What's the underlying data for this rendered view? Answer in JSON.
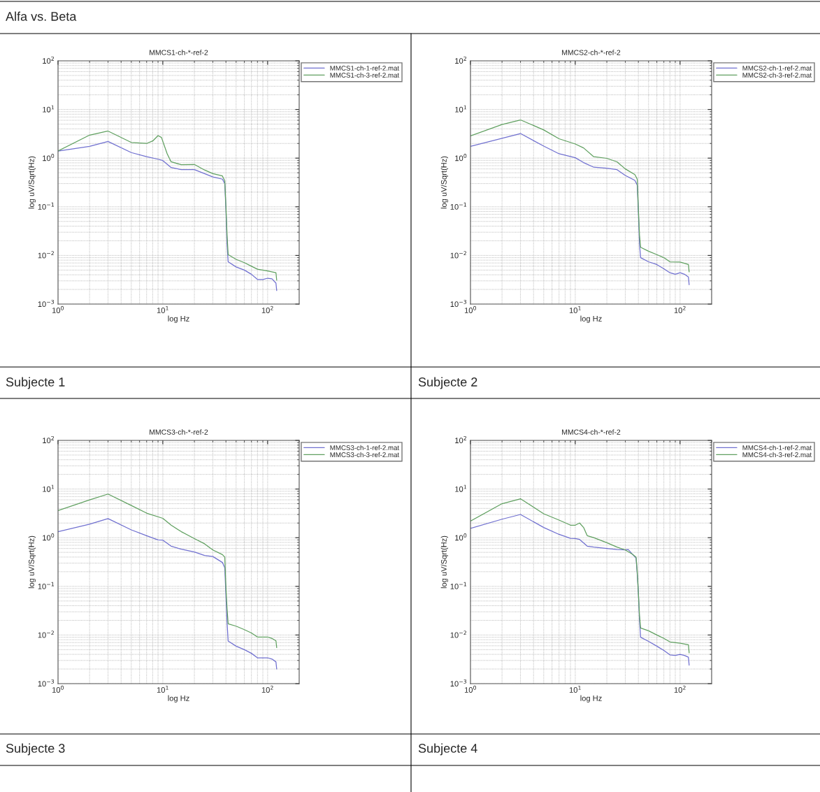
{
  "chart_data": [
    {
      "type": "line",
      "title": "MMCS1-ch-*-ref-2",
      "xlabel": "log Hz",
      "ylabel": "log uV/Sqrt(Hz)",
      "log": "xy",
      "grid": true,
      "legend": "top right",
      "line_style": "solid",
      "annotations": [
        "Alfa vs. Beta",
        "Subjecte 1"
      ],
      "xlim": [
        1,
        200
      ],
      "ylim": [
        0.001,
        100
      ],
      "xticks": [
        {
          "value": 1,
          "label": "10$^{0}$"
        },
        {
          "value": 10,
          "label": "10$^{1}$"
        },
        {
          "value": 100,
          "label": "10$^{2}$"
        }
      ],
      "yticks": [
        {
          "value": 0.001,
          "label": "10$^{−3}$"
        },
        {
          "value": 0.01,
          "label": "10$^{−2}$"
        },
        {
          "value": 0.1,
          "label": "10$^{−1}$"
        },
        {
          "value": 1,
          "label": "10$^{0}$"
        },
        {
          "value": 10,
          "label": "10$^{1}$"
        },
        {
          "value": 100,
          "label": "10$^{2}$"
        }
      ],
      "series": [
        {
          "name": "MMCS1-ch-1-ref-2.mat",
          "color": "#7070d0",
          "x": [
            1,
            2,
            3,
            5,
            7,
            9,
            10,
            12,
            15,
            20,
            25,
            30,
            37,
            39,
            40,
            41,
            42,
            50,
            60,
            70,
            80,
            90,
            100,
            110,
            120,
            122
          ],
          "values": [
            1.4,
            1.75,
            2.2,
            1.3,
            1.07,
            0.95,
            0.89,
            0.64,
            0.58,
            0.58,
            0.48,
            0.41,
            0.37,
            0.3,
            0.089,
            0.017,
            0.0074,
            0.0058,
            0.005,
            0.0041,
            0.0032,
            0.0032,
            0.0034,
            0.0033,
            0.0027,
            0.0019
          ]
        },
        {
          "name": "MMCS1-ch-3-ref-2.mat",
          "color": "#60a060",
          "x": [
            1,
            2,
            3,
            5,
            7,
            8,
            9,
            9.7,
            11,
            12,
            15,
            20,
            25,
            30,
            37,
            39,
            40,
            41,
            42,
            50,
            60,
            70,
            80,
            100,
            120,
            122
          ],
          "values": [
            1.4,
            2.97,
            3.6,
            2.1,
            2.0,
            2.25,
            2.9,
            2.66,
            1.23,
            0.84,
            0.73,
            0.74,
            0.57,
            0.48,
            0.43,
            0.34,
            0.1,
            0.026,
            0.0104,
            0.0083,
            0.0071,
            0.006,
            0.0052,
            0.0048,
            0.0044,
            0.0031
          ]
        }
      ]
    },
    {
      "type": "line",
      "title": "MMCS2-ch-*-ref-2",
      "xlabel": "log Hz",
      "ylabel": "log uV/Sqrt(Hz)",
      "log": "xy",
      "grid": true,
      "legend": "top right",
      "line_style": "solid",
      "annotations": [
        "Subjecte 2"
      ],
      "xlim": [
        1,
        200
      ],
      "ylim": [
        0.001,
        100
      ],
      "xticks": [
        {
          "value": 1,
          "label": "10$^{0}$"
        },
        {
          "value": 10,
          "label": "10$^{1}$"
        },
        {
          "value": 100,
          "label": "10$^{2}$"
        }
      ],
      "yticks": [
        {
          "value": 0.001,
          "label": "10$^{−3}$"
        },
        {
          "value": 0.01,
          "label": "10$^{−2}$"
        },
        {
          "value": 0.1,
          "label": "10$^{−1}$"
        },
        {
          "value": 1,
          "label": "10$^{0}$"
        },
        {
          "value": 10,
          "label": "10$^{1}$"
        },
        {
          "value": 100,
          "label": "10$^{2}$"
        }
      ],
      "series": [
        {
          "name": "MMCS2-ch-1-ref-2.mat",
          "color": "#7070d0",
          "x": [
            1,
            3,
            5,
            7,
            10,
            12,
            15,
            20,
            25,
            30,
            37,
            39,
            40,
            41,
            42,
            50,
            60,
            70,
            80,
            90,
            100,
            110,
            120,
            122
          ],
          "values": [
            1.75,
            3.2,
            1.77,
            1.23,
            1.02,
            0.81,
            0.65,
            0.62,
            0.58,
            0.44,
            0.35,
            0.28,
            0.079,
            0.017,
            0.009,
            0.0074,
            0.0065,
            0.0053,
            0.0044,
            0.0041,
            0.0044,
            0.0041,
            0.0036,
            0.0025
          ]
        },
        {
          "name": "MMCS2-ch-3-ref-2.mat",
          "color": "#60a060",
          "x": [
            1,
            2,
            3,
            5,
            7,
            10,
            12,
            15,
            20,
            25,
            30,
            37,
            39,
            40,
            41,
            42,
            50,
            60,
            70,
            80,
            100,
            120,
            122
          ],
          "values": [
            2.87,
            4.9,
            6.1,
            3.8,
            2.5,
            1.95,
            1.62,
            1.07,
            0.99,
            0.84,
            0.6,
            0.46,
            0.37,
            0.089,
            0.026,
            0.0147,
            0.0122,
            0.0104,
            0.009,
            0.0074,
            0.0073,
            0.0065,
            0.0046
          ]
        }
      ]
    },
    {
      "type": "line",
      "title": "MMCS3-ch-*-ref-2",
      "xlabel": "log Hz",
      "ylabel": "log uV/Sqrt(Hz)",
      "log": "xy",
      "grid": true,
      "legend": "top right",
      "line_style": "solid",
      "annotations": [
        "Subjecte 3"
      ],
      "xlim": [
        1,
        200
      ],
      "ylim": [
        0.001,
        100
      ],
      "xticks": [
        {
          "value": 1,
          "label": "10$^{0}$"
        },
        {
          "value": 10,
          "label": "10$^{1}$"
        },
        {
          "value": 100,
          "label": "10$^{2}$"
        }
      ],
      "yticks": [
        {
          "value": 0.001,
          "label": "10$^{−3}$"
        },
        {
          "value": 0.01,
          "label": "10$^{−2}$"
        },
        {
          "value": 0.1,
          "label": "10$^{−1}$"
        },
        {
          "value": 1,
          "label": "10$^{0}$"
        },
        {
          "value": 10,
          "label": "10$^{1}$"
        },
        {
          "value": 100,
          "label": "10$^{2}$"
        }
      ],
      "series": [
        {
          "name": "MMCS3-ch-1-ref-2.mat",
          "color": "#7070d0",
          "x": [
            1,
            2,
            3,
            5,
            7,
            9,
            10,
            12,
            15,
            20,
            25,
            30,
            37,
            39,
            40,
            41,
            42,
            50,
            60,
            70,
            80,
            90,
            100,
            110,
            120,
            122
          ],
          "values": [
            1.33,
            1.9,
            2.47,
            1.45,
            1.1,
            0.9,
            0.89,
            0.67,
            0.58,
            0.51,
            0.43,
            0.41,
            0.31,
            0.24,
            0.066,
            0.018,
            0.0075,
            0.0059,
            0.005,
            0.0042,
            0.0034,
            0.0034,
            0.0034,
            0.0032,
            0.0028,
            0.002
          ]
        },
        {
          "name": "MMCS3-ch-3-ref-2.mat",
          "color": "#60a060",
          "x": [
            1,
            2,
            3,
            5,
            7,
            10,
            12,
            15,
            20,
            25,
            30,
            37,
            39,
            40,
            41,
            42,
            50,
            60,
            70,
            80,
            100,
            110,
            120,
            122
          ],
          "values": [
            3.6,
            6.0,
            7.9,
            4.6,
            3.2,
            2.5,
            1.81,
            1.33,
            0.96,
            0.75,
            0.56,
            0.45,
            0.4,
            0.093,
            0.035,
            0.017,
            0.0152,
            0.0129,
            0.011,
            0.0091,
            0.0091,
            0.0085,
            0.0076,
            0.0055
          ]
        }
      ]
    },
    {
      "type": "line",
      "title": "MMCS4-ch-*-ref-2",
      "xlabel": "log Hz",
      "ylabel": "log uV/Sqrt(Hz)",
      "log": "xy",
      "grid": true,
      "legend": "top right",
      "line_style": "solid",
      "annotations": [
        "Subjecte 4"
      ],
      "xlim": [
        1,
        200
      ],
      "ylim": [
        0.001,
        100
      ],
      "xticks": [
        {
          "value": 1,
          "label": "10$^{0}$"
        },
        {
          "value": 10,
          "label": "10$^{1}$"
        },
        {
          "value": 100,
          "label": "10$^{2}$"
        }
      ],
      "yticks": [
        {
          "value": 0.001,
          "label": "10$^{−3}$"
        },
        {
          "value": 0.01,
          "label": "10$^{−2}$"
        },
        {
          "value": 0.1,
          "label": "10$^{−1}$"
        },
        {
          "value": 1,
          "label": "10$^{0}$"
        },
        {
          "value": 10,
          "label": "10$^{1}$"
        },
        {
          "value": 100,
          "label": "10$^{2}$"
        }
      ],
      "series": [
        {
          "name": "MMCS4-ch-1-ref-2.mat",
          "color": "#7070d0",
          "x": [
            1,
            2,
            3,
            5,
            7,
            9,
            10,
            11,
            13,
            15,
            20,
            25,
            30,
            32,
            35,
            38,
            39,
            40,
            41,
            42,
            50,
            60,
            70,
            80,
            90,
            100,
            110,
            120,
            122
          ],
          "values": [
            1.55,
            2.4,
            3.0,
            1.62,
            1.17,
            0.97,
            0.96,
            0.92,
            0.67,
            0.64,
            0.6,
            0.57,
            0.56,
            0.57,
            0.46,
            0.38,
            0.18,
            0.074,
            0.02,
            0.009,
            0.0074,
            0.0059,
            0.0048,
            0.0039,
            0.0038,
            0.004,
            0.0038,
            0.0035,
            0.0024
          ]
        },
        {
          "name": "MMCS4-ch-3-ref-2.mat",
          "color": "#60a060",
          "x": [
            1,
            2,
            3,
            5,
            7,
            9,
            10,
            11,
            12,
            13,
            15,
            20,
            25,
            30,
            35,
            38,
            39,
            40,
            41,
            42,
            50,
            60,
            70,
            80,
            100,
            120,
            122
          ],
          "values": [
            2.2,
            5.0,
            6.3,
            3.1,
            2.3,
            1.81,
            1.81,
            2.0,
            1.62,
            1.1,
            1.0,
            0.79,
            0.64,
            0.56,
            0.46,
            0.4,
            0.2,
            0.074,
            0.025,
            0.0139,
            0.0122,
            0.01,
            0.0085,
            0.0072,
            0.0068,
            0.0063,
            0.0043
          ]
        }
      ]
    }
  ]
}
